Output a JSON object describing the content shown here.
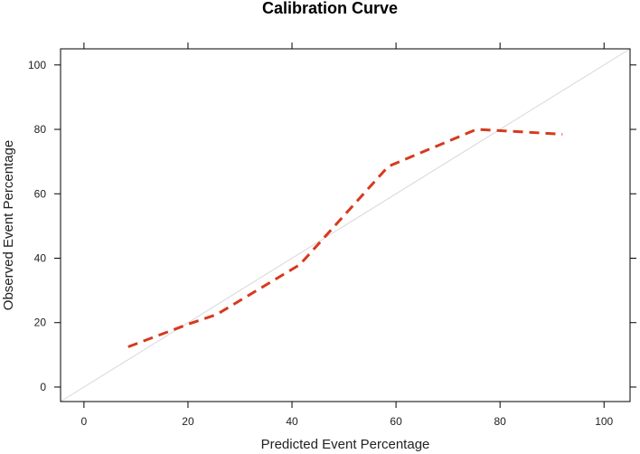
{
  "chart_data": {
    "type": "line",
    "title": "Calibration Curve",
    "xlabel": "Predicted Event Percentage",
    "ylabel": "Observed Event Percentage",
    "xlim": [
      -4.5,
      105
    ],
    "ylim": [
      -4.5,
      105
    ],
    "x_ticks": [
      0,
      20,
      40,
      60,
      80,
      100
    ],
    "y_ticks": [
      0,
      20,
      40,
      60,
      80,
      100
    ],
    "grid": false,
    "series": [
      {
        "name": "calibration",
        "style": "dashed",
        "color": "#d63a1e",
        "x": [
          8.5,
          20,
          25.5,
          41.5,
          58.5,
          75.5,
          92
        ],
        "y": [
          12.5,
          19.5,
          22.5,
          38,
          68.5,
          80,
          78.5
        ]
      },
      {
        "name": "reference",
        "style": "solid",
        "color": "#d9d9d9",
        "x": [
          -4.5,
          105
        ],
        "y": [
          -4.5,
          105
        ]
      }
    ]
  }
}
